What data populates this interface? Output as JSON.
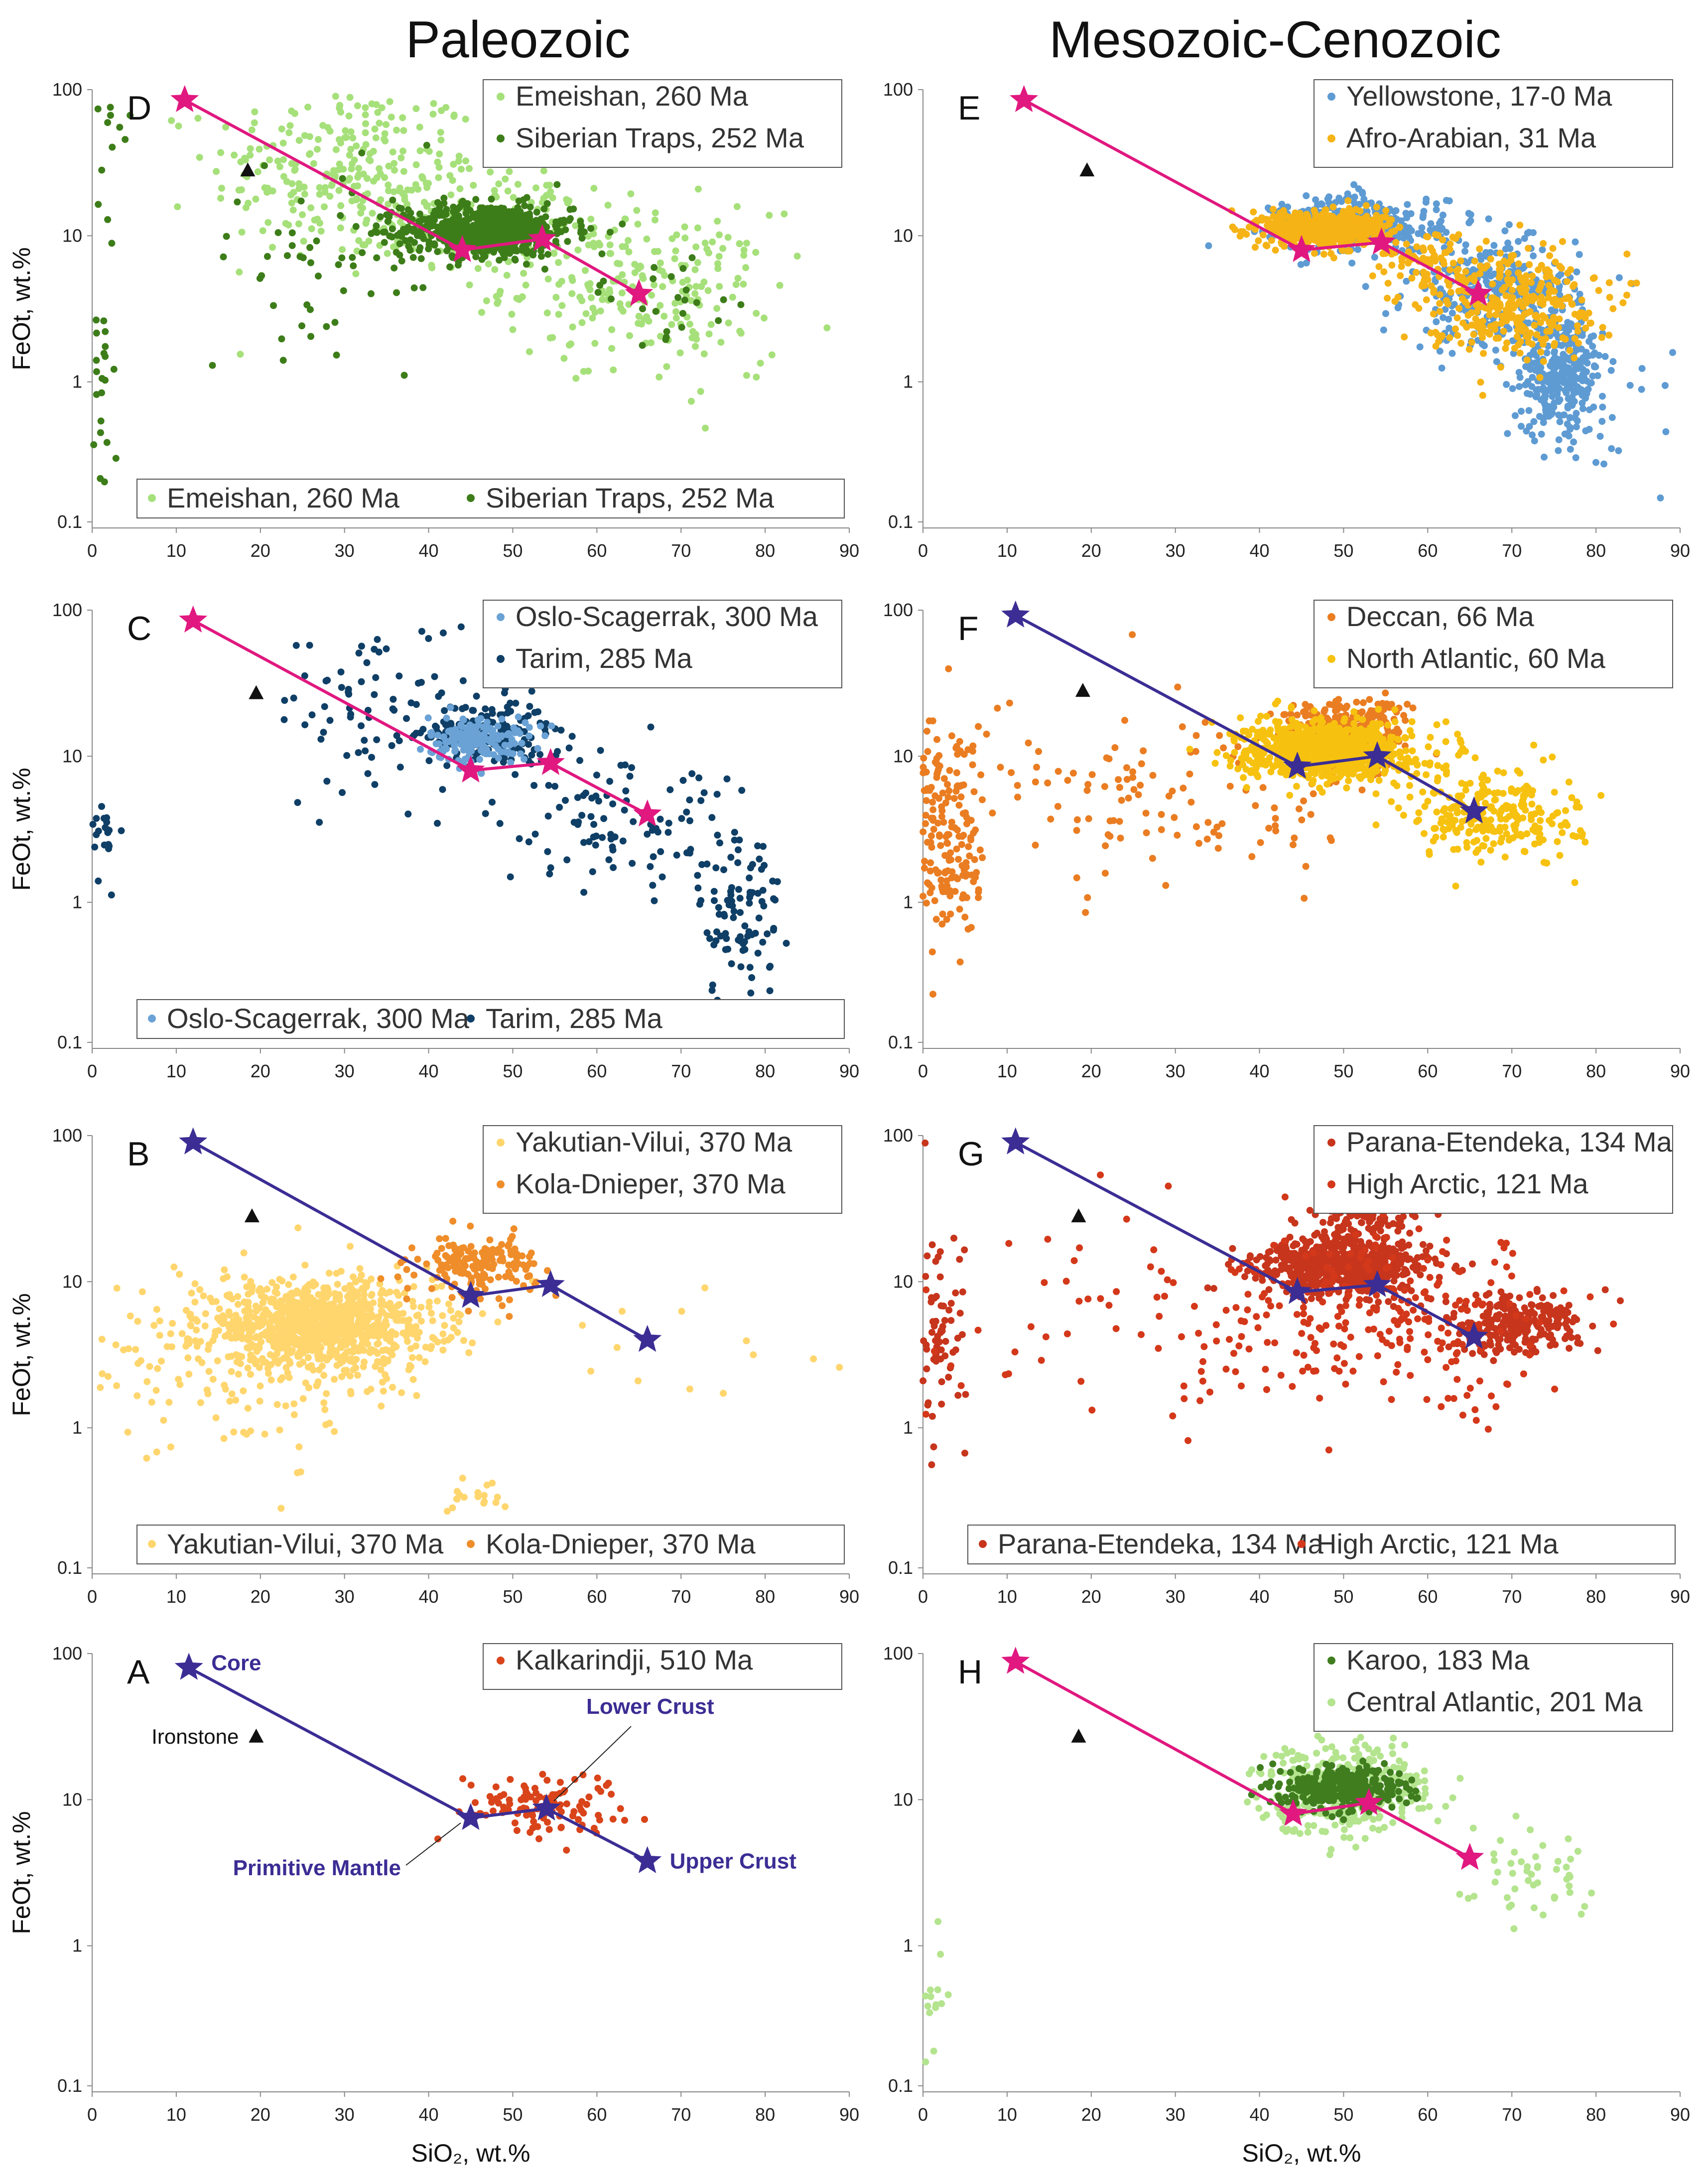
{
  "titles": {
    "left": "Paleozoic",
    "right": "Mesozoic-Cenozoic"
  },
  "colors": {
    "magenta": "#e0187f",
    "indigo": "#3b2d94",
    "emeishan": "#a6e07a",
    "siberian": "#3d7d19",
    "oslo": "#6aa2d6",
    "tarim": "#0f3f66",
    "yakutian": "#ffd66e",
    "kola": "#ef8d2a",
    "kalkarindji": "#d9441a",
    "yellowstone": "#5e9bd3",
    "afro": "#f5b316",
    "deccan": "#ea7d22",
    "north_atlantic": "#f7c20f",
    "parana": "#c7351c",
    "high_arctic": "#d4381a",
    "karoo": "#3f7d1f",
    "central_atlantic": "#b4e48e"
  },
  "chart_data": [
    {
      "id": "D",
      "panel_label": "D",
      "type": "scatter",
      "xlabel": "",
      "ylabel": "FeOt, wt.%",
      "xlim": [
        0,
        90
      ],
      "ylim": [
        0.1,
        100
      ],
      "yscale": "log",
      "x_ticks": [
        "0",
        "10",
        "20",
        "30",
        "40",
        "50",
        "60",
        "70",
        "80",
        "90"
      ],
      "y_ticks": [
        "0.1",
        "1",
        "10",
        "100"
      ],
      "reference_line_color": "magenta",
      "reference_points": [
        {
          "name": "Core",
          "x": 11,
          "y": 85
        },
        {
          "name": "Primitive Mantle",
          "x": 44,
          "y": 8
        },
        {
          "name": "Lower Crust",
          "x": 53.5,
          "y": 9.5
        },
        {
          "name": "Upper Crust",
          "x": 65,
          "y": 4
        }
      ],
      "ironstone": {
        "x": 18.5,
        "y": 28
      },
      "legend_top": [
        "Emeishan, 260 Ma",
        "Siberian Traps, 252 Ma"
      ],
      "legend_bottom": [
        "Emeishan, 260 Ma",
        "Siberian Traps, 252 Ma"
      ],
      "series": [
        {
          "name": "Emeishan, 260 Ma",
          "color": "emeishan",
          "clusters": [
            {
              "cx": 30,
              "cy": 28,
              "sx": 8,
              "sy": 0.3,
              "n": 260
            },
            {
              "cx": 65,
              "cy": 4.5,
              "sx": 8,
              "sy": 0.25,
              "n": 200
            },
            {
              "cx": 48,
              "cy": 12,
              "sx": 8,
              "sy": 0.18,
              "n": 150
            },
            {
              "cx": 72,
              "cy": 2.2,
              "sx": 4,
              "sy": 0.3,
              "n": 25
            }
          ]
        },
        {
          "name": "Siberian Traps, 252 Ma",
          "color": "siberian",
          "clusters": [
            {
              "cx": 47,
              "cy": 11,
              "sx": 5,
              "sy": 0.09,
              "n": 650
            },
            {
              "cx": 30,
              "cy": 7,
              "sx": 9,
              "sy": 0.3,
              "n": 60
            },
            {
              "cx": 1,
              "cy": 1.5,
              "sx": 0.8,
              "sy": 0.55,
              "n": 28
            },
            {
              "cx": 3,
              "cy": 50,
              "sx": 1.5,
              "sy": 0.15,
              "n": 10
            },
            {
              "cx": 68,
              "cy": 4,
              "sx": 6,
              "sy": 0.15,
              "n": 25
            }
          ]
        }
      ]
    },
    {
      "id": "C",
      "panel_label": "C",
      "type": "scatter",
      "xlabel": "",
      "ylabel": "FeOt, wt.%",
      "xlim": [
        0,
        90
      ],
      "ylim": [
        0.1,
        100
      ],
      "yscale": "log",
      "x_ticks": [
        "0",
        "10",
        "20",
        "30",
        "40",
        "50",
        "60",
        "70",
        "80",
        "90"
      ],
      "y_ticks": [
        "0.1",
        "1",
        "10",
        "100"
      ],
      "reference_line_color": "magenta",
      "reference_points": [
        {
          "name": "Core",
          "x": 12,
          "y": 85
        },
        {
          "name": "Primitive Mantle",
          "x": 45,
          "y": 8
        },
        {
          "name": "Lower Crust",
          "x": 54.5,
          "y": 9
        },
        {
          "name": "Upper Crust",
          "x": 66,
          "y": 4
        }
      ],
      "ironstone": {
        "x": 19.5,
        "y": 27
      },
      "legend_top": [
        "Oslo-Scagerrak, 300 Ma",
        "Tarim, 285 Ma"
      ],
      "legend_bottom": [
        "Oslo-Scagerrak, 300 Ma",
        "Tarim, 285 Ma"
      ],
      "series": [
        {
          "name": "Tarim, 285 Ma",
          "color": "tarim",
          "clusters": [
            {
              "cx": 47,
              "cy": 14,
              "sx": 3.5,
              "sy": 0.12,
              "n": 180
            },
            {
              "cx": 34,
              "cy": 22,
              "sx": 6,
              "sy": 0.3,
              "n": 80
            },
            {
              "cx": 62,
              "cy": 4,
              "sx": 7,
              "sy": 0.25,
              "n": 110
            },
            {
              "cx": 77,
              "cy": 0.8,
              "sx": 2.5,
              "sy": 0.3,
              "n": 90
            },
            {
              "cx": 1,
              "cy": 2.8,
              "sx": 1,
              "sy": 0.15,
              "n": 30
            }
          ]
        },
        {
          "name": "Oslo-Scagerrak, 300 Ma",
          "color": "oslo",
          "clusters": [
            {
              "cx": 46,
              "cy": 13,
              "sx": 3,
              "sy": 0.08,
              "n": 160
            }
          ]
        }
      ]
    },
    {
      "id": "B",
      "panel_label": "B",
      "type": "scatter",
      "xlabel": "",
      "ylabel": "FeOt, wt.%",
      "xlim": [
        0,
        90
      ],
      "ylim": [
        0.1,
        100
      ],
      "yscale": "log",
      "x_ticks": [
        "0",
        "10",
        "20",
        "30",
        "40",
        "50",
        "60",
        "70",
        "80",
        "90"
      ],
      "y_ticks": [
        "0.1",
        "1",
        "10",
        "100"
      ],
      "reference_line_color": "indigo",
      "reference_points": [
        {
          "name": "Core",
          "x": 12,
          "y": 90
        },
        {
          "name": "Primitive Mantle",
          "x": 45,
          "y": 8
        },
        {
          "name": "Lower Crust",
          "x": 54.5,
          "y": 9.5
        },
        {
          "name": "Upper Crust",
          "x": 66,
          "y": 4
        }
      ],
      "ironstone": {
        "x": 19,
        "y": 28
      },
      "legend_top": [
        "Yakutian-Vilui, 370 Ma",
        "Kola-Dnieper, 370 Ma"
      ],
      "legend_bottom": [
        "Yakutian-Vilui, 370 Ma",
        "Kola-Dnieper, 370 Ma"
      ],
      "series": [
        {
          "name": "Yakutian-Vilui, 370 Ma",
          "color": "yakutian",
          "clusters": [
            {
              "cx": 27,
              "cy": 5,
              "sx": 7,
              "sy": 0.14,
              "n": 900
            },
            {
              "cx": 20,
              "cy": 3,
              "sx": 12,
              "sy": 0.3,
              "n": 220
            },
            {
              "cx": 45,
              "cy": 0.35,
              "sx": 3,
              "sy": 0.06,
              "n": 18
            },
            {
              "cx": 75,
              "cy": 2.5,
              "sx": 9,
              "sy": 0.2,
              "n": 15
            }
          ]
        },
        {
          "name": "Kola-Dnieper, 370 Ma",
          "color": "kola",
          "clusters": [
            {
              "cx": 46,
              "cy": 13,
              "sx": 3.5,
              "sy": 0.1,
              "n": 170
            }
          ]
        }
      ]
    },
    {
      "id": "A",
      "panel_label": "A",
      "type": "scatter",
      "xlabel": "SiO₂, wt.%",
      "ylabel": "FeOt, wt.%",
      "xlim": [
        0,
        90
      ],
      "ylim": [
        0.1,
        100
      ],
      "yscale": "log",
      "x_ticks": [
        "0",
        "10",
        "20",
        "30",
        "40",
        "50",
        "60",
        "70",
        "80",
        "90"
      ],
      "y_ticks": [
        "0.1",
        "1",
        "10",
        "100"
      ],
      "reference_line_color": "indigo",
      "reference_points": [
        {
          "name": "Core",
          "x": 11.5,
          "y": 80
        },
        {
          "name": "Primitive Mantle",
          "x": 45,
          "y": 7.5
        },
        {
          "name": "Lower Crust",
          "x": 54,
          "y": 8.7
        },
        {
          "name": "Upper Crust",
          "x": 66,
          "y": 3.8
        }
      ],
      "ironstone": {
        "x": 19.5,
        "y": 27
      },
      "annotations": {
        "core": "Core",
        "lower_crust": "Lower Crust",
        "primitive_mantle": "Primitive Mantle",
        "upper_crust": "Upper Crust",
        "ironstone": "Ironstone"
      },
      "legend_top": [
        "Kalkarindji, 510 Ma"
      ],
      "legend_bottom": [],
      "series": [
        {
          "name": "Kalkarindji, 510 Ma",
          "color": "kalkarindji",
          "clusters": [
            {
              "cx": 53,
              "cy": 9.5,
              "sx": 5,
              "sy": 0.1,
              "n": 110
            }
          ]
        }
      ]
    },
    {
      "id": "E",
      "panel_label": "E",
      "type": "scatter",
      "xlabel": "",
      "ylabel": "",
      "xlim": [
        0,
        90
      ],
      "ylim": [
        0.1,
        100
      ],
      "yscale": "log",
      "x_ticks": [
        "0",
        "10",
        "20",
        "30",
        "40",
        "50",
        "60",
        "70",
        "80",
        "90"
      ],
      "y_ticks": [
        "0.1",
        "1",
        "10",
        "100"
      ],
      "reference_line_color": "magenta",
      "reference_points": [
        {
          "name": "Core",
          "x": 12,
          "y": 85
        },
        {
          "name": "Primitive Mantle",
          "x": 45,
          "y": 8
        },
        {
          "name": "Lower Crust",
          "x": 54.5,
          "y": 9
        },
        {
          "name": "Upper Crust",
          "x": 66,
          "y": 4
        }
      ],
      "ironstone": {
        "x": 19.5,
        "y": 28
      },
      "legend_top": [
        "Yellowstone, 17-0 Ma",
        "Afro-Arabian, 31 Ma"
      ],
      "legend_bottom": [],
      "series": [
        {
          "name": "Yellowstone, 17-0 Ma",
          "color": "yellowstone",
          "clusters": [
            {
              "cx": 52,
              "cy": 12,
              "sx": 5,
              "sy": 0.1,
              "n": 300
            },
            {
              "cx": 68,
              "cy": 4,
              "sx": 5,
              "sy": 0.2,
              "n": 300
            },
            {
              "cx": 76,
              "cy": 1.1,
              "sx": 2.5,
              "sy": 0.2,
              "n": 320
            },
            {
              "cx": 85,
              "cy": 0.9,
              "sx": 3,
              "sy": 0.3,
              "n": 12
            }
          ]
        },
        {
          "name": "Afro-Arabian, 31 Ma",
          "color": "afro",
          "clusters": [
            {
              "cx": 48,
              "cy": 11,
              "sx": 3.5,
              "sy": 0.06,
              "n": 700
            },
            {
              "cx": 70,
              "cy": 3.5,
              "sx": 5,
              "sy": 0.18,
              "n": 300
            },
            {
              "cx": 60,
              "cy": 6,
              "sx": 4,
              "sy": 0.15,
              "n": 100
            }
          ]
        }
      ]
    },
    {
      "id": "F",
      "panel_label": "F",
      "type": "scatter",
      "xlabel": "",
      "ylabel": "",
      "xlim": [
        0,
        90
      ],
      "ylim": [
        0.1,
        100
      ],
      "yscale": "log",
      "x_ticks": [
        "0",
        "10",
        "20",
        "30",
        "40",
        "50",
        "60",
        "70",
        "80",
        "90"
      ],
      "y_ticks": [
        "0.1",
        "1",
        "10",
        "100"
      ],
      "reference_line_color": "indigo",
      "reference_points": [
        {
          "name": "Core",
          "x": 11,
          "y": 92
        },
        {
          "name": "Primitive Mantle",
          "x": 44.5,
          "y": 8.5
        },
        {
          "name": "Lower Crust",
          "x": 54,
          "y": 10
        },
        {
          "name": "Upper Crust",
          "x": 65.5,
          "y": 4.2
        }
      ],
      "ironstone": {
        "x": 19,
        "y": 28
      },
      "legend_top": [
        "Deccan, 66 Ma",
        "North Atlantic, 60 Ma"
      ],
      "legend_bottom": [],
      "series": [
        {
          "name": "Deccan, 66 Ma",
          "color": "deccan",
          "clusters": [
            {
              "cx": 50,
              "cy": 14,
              "sx": 3.5,
              "sy": 0.12,
              "n": 350
            },
            {
              "cx": 3,
              "cy": 3,
              "sx": 2.5,
              "sy": 0.4,
              "n": 200
            },
            {
              "cx": 30,
              "cy": 5,
              "sx": 12,
              "sy": 0.3,
              "n": 120
            }
          ]
        },
        {
          "name": "North Atlantic, 60 Ma",
          "color": "north_atlantic",
          "clusters": [
            {
              "cx": 48,
              "cy": 11,
              "sx": 5,
              "sy": 0.1,
              "n": 800
            },
            {
              "cx": 68,
              "cy": 4,
              "sx": 5,
              "sy": 0.15,
              "n": 250
            }
          ]
        }
      ]
    },
    {
      "id": "G",
      "panel_label": "G",
      "type": "scatter",
      "xlabel": "",
      "ylabel": "",
      "xlim": [
        0,
        90
      ],
      "ylim": [
        0.1,
        100
      ],
      "yscale": "log",
      "x_ticks": [
        "0",
        "10",
        "20",
        "30",
        "40",
        "50",
        "60",
        "70",
        "80",
        "90"
      ],
      "y_ticks": [
        "0.1",
        "1",
        "10",
        "100"
      ],
      "reference_line_color": "indigo",
      "reference_points": [
        {
          "name": "Core",
          "x": 11,
          "y": 90
        },
        {
          "name": "Primitive Mantle",
          "x": 44.5,
          "y": 8.5
        },
        {
          "name": "Lower Crust",
          "x": 54,
          "y": 9.5
        },
        {
          "name": "Upper Crust",
          "x": 65.5,
          "y": 4.2
        }
      ],
      "ironstone": {
        "x": 18.5,
        "y": 28
      },
      "legend_top": [
        "Parana-Etendeka, 134 Ma",
        "High Arctic, 121 Ma"
      ],
      "legend_bottom": [
        "Parana-Etendeka, 134 Ma",
        "High Arctic, 121 Ma"
      ],
      "series": [
        {
          "name": "Parana-Etendeka, 134 Ma",
          "color": "parana",
          "clusters": [
            {
              "cx": 50,
              "cy": 13,
              "sx": 5,
              "sy": 0.1,
              "n": 650
            },
            {
              "cx": 70,
              "cy": 5,
              "sx": 4,
              "sy": 0.1,
              "n": 250
            },
            {
              "cx": 2,
              "cy": 4,
              "sx": 1.5,
              "sy": 0.35,
              "n": 70
            },
            {
              "cx": 52,
              "cy": 26,
              "sx": 3,
              "sy": 0.06,
              "n": 80
            }
          ]
        },
        {
          "name": "High Arctic, 121 Ma",
          "color": "high_arctic",
          "clusters": [
            {
              "cx": 55,
              "cy": 5,
              "sx": 12,
              "sy": 0.3,
              "n": 260
            },
            {
              "cx": 20,
              "cy": 6,
              "sx": 10,
              "sy": 0.35,
              "n": 40
            }
          ]
        }
      ]
    },
    {
      "id": "H",
      "panel_label": "H",
      "type": "scatter",
      "xlabel": "SiO₂, wt.%",
      "ylabel": "",
      "xlim": [
        0,
        90
      ],
      "ylim": [
        0.1,
        100
      ],
      "yscale": "log",
      "x_ticks": [
        "0",
        "10",
        "20",
        "30",
        "40",
        "50",
        "60",
        "70",
        "80",
        "90"
      ],
      "y_ticks": [
        "0.1",
        "1",
        "10",
        "100"
      ],
      "reference_line_color": "magenta",
      "reference_points": [
        {
          "name": "Core",
          "x": 11,
          "y": 88
        },
        {
          "name": "Primitive Mantle",
          "x": 44,
          "y": 8
        },
        {
          "name": "Lower Crust",
          "x": 53,
          "y": 9.5
        },
        {
          "name": "Upper Crust",
          "x": 65,
          "y": 4
        }
      ],
      "ironstone": {
        "x": 18.5,
        "y": 27
      },
      "legend_top": [
        "Karoo, 183 Ma",
        "Central Atlantic, 201 Ma"
      ],
      "legend_bottom": [],
      "series": [
        {
          "name": "Central Atlantic, 201 Ma",
          "color": "central_atlantic",
          "clusters": [
            {
              "cx": 50,
              "cy": 12,
              "sx": 5,
              "sy": 0.15,
              "n": 400
            },
            {
              "cx": 72,
              "cy": 3,
              "sx": 4,
              "sy": 0.2,
              "n": 50
            },
            {
              "cx": 1,
              "cy": 0.4,
              "sx": 0.7,
              "sy": 0.3,
              "n": 15
            }
          ]
        },
        {
          "name": "Karoo, 183 Ma",
          "color": "karoo",
          "clusters": [
            {
              "cx": 50,
              "cy": 12,
              "sx": 3.5,
              "sy": 0.07,
              "n": 380
            }
          ]
        }
      ]
    }
  ]
}
